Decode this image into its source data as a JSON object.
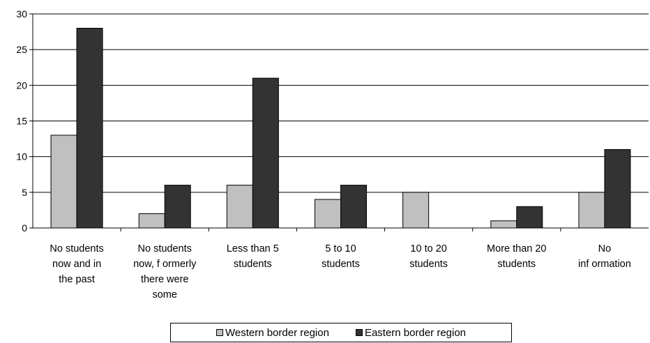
{
  "chart_data": {
    "type": "bar",
    "categories": [
      [
        "No students",
        "now and in",
        "the past"
      ],
      [
        "No students",
        "now, f ormerly",
        "there were",
        "some"
      ],
      [
        "Less than 5",
        "students"
      ],
      [
        "5 to 10",
        "students"
      ],
      [
        "10 to 20",
        "students"
      ],
      [
        "More than 20",
        "students"
      ],
      [
        "No",
        "inf ormation"
      ]
    ],
    "series": [
      {
        "name": "Western border region",
        "color": "#c0c0c0",
        "values": [
          13,
          2,
          6,
          4,
          5,
          1,
          5
        ]
      },
      {
        "name": "Eastern border region",
        "color": "#333333",
        "values": [
          28,
          6,
          21,
          6,
          0,
          3,
          11
        ]
      }
    ],
    "ylim": [
      0,
      30
    ],
    "yticks": [
      0,
      5,
      10,
      15,
      20,
      25,
      30
    ],
    "grid": true,
    "legend_position": "bottom"
  }
}
